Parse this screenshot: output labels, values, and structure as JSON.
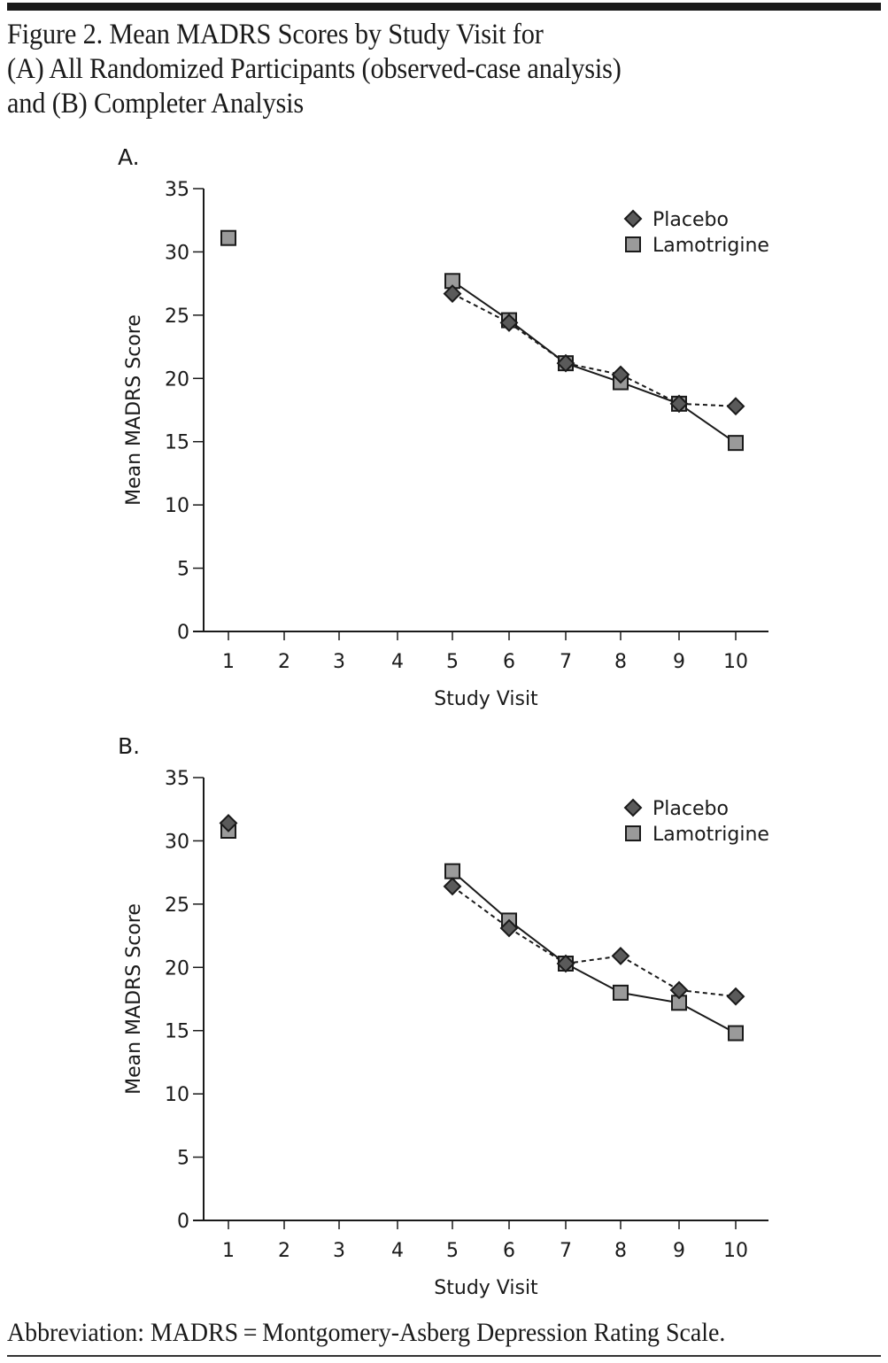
{
  "figure": {
    "title_lines": [
      "Figure 2. Mean MADRS Scores by Study Visit for",
      "(A) All Randomized Participants (observed-case analysis)",
      "and (B) Completer Analysis"
    ],
    "footer": "Abbreviation: MADRS = Montgomery-Asberg Depression Rating Scale."
  },
  "colors": {
    "placebo_fill": "#5a5a5a",
    "lamotrigine_fill": "#9a9a9a",
    "stroke": "#1a1a1a"
  },
  "chart_data": [
    {
      "type": "line",
      "panel_label": "A.",
      "title": "",
      "xlabel": "Study Visit",
      "ylabel": "Mean MADRS Score",
      "x": [
        1,
        2,
        3,
        4,
        5,
        6,
        7,
        8,
        9,
        10
      ],
      "xticks": [
        "1",
        "2",
        "3",
        "4",
        "5",
        "6",
        "7",
        "8",
        "9",
        "10"
      ],
      "yticks": [
        "0",
        "5",
        "10",
        "15",
        "20",
        "25",
        "30",
        "35"
      ],
      "ylim": [
        0,
        35
      ],
      "grid": false,
      "legend_position": "top-right",
      "series": [
        {
          "name": "Placebo",
          "marker": "diamond",
          "line": "dashed",
          "values": [
            null,
            null,
            null,
            null,
            26.7,
            24.4,
            21.2,
            20.3,
            18.0,
            17.8
          ]
        },
        {
          "name": "Lamotrigine",
          "marker": "square",
          "line": "solid",
          "values": [
            31.1,
            null,
            null,
            null,
            27.7,
            24.6,
            21.2,
            19.7,
            18.0,
            14.9
          ]
        }
      ]
    },
    {
      "type": "line",
      "panel_label": "B.",
      "title": "",
      "xlabel": "Study Visit",
      "ylabel": "Mean MADRS Score",
      "x": [
        1,
        2,
        3,
        4,
        5,
        6,
        7,
        8,
        9,
        10
      ],
      "xticks": [
        "1",
        "2",
        "3",
        "4",
        "5",
        "6",
        "7",
        "8",
        "9",
        "10"
      ],
      "yticks": [
        "0",
        "5",
        "10",
        "15",
        "20",
        "25",
        "30",
        "35"
      ],
      "ylim": [
        0,
        35
      ],
      "grid": false,
      "legend_position": "top-right",
      "series": [
        {
          "name": "Placebo",
          "marker": "diamond",
          "line": "dashed",
          "values": [
            31.4,
            null,
            null,
            null,
            26.4,
            23.1,
            20.3,
            20.9,
            18.2,
            17.7
          ]
        },
        {
          "name": "Lamotrigine",
          "marker": "square",
          "line": "solid",
          "values": [
            30.8,
            null,
            null,
            null,
            27.6,
            23.7,
            20.3,
            18.0,
            17.2,
            14.8
          ]
        }
      ]
    }
  ]
}
